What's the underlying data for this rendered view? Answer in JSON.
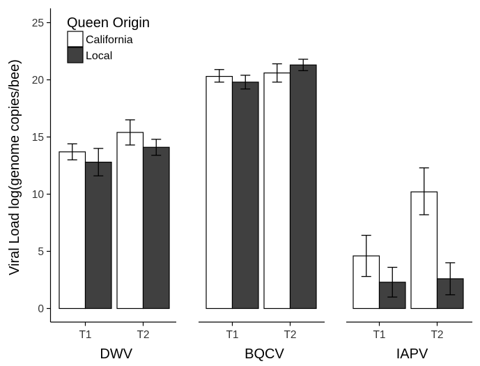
{
  "chart_data": {
    "type": "bar",
    "ylabel": "Viral Load log(genome copies/bee)",
    "ylim": [
      0,
      26
    ],
    "yticks": [
      0,
      5,
      10,
      15,
      20,
      25
    ],
    "legend": {
      "title": "Queen Origin",
      "placement": "top-left",
      "entries": [
        {
          "name": "California",
          "color": "#ffffff"
        },
        {
          "name": "Local",
          "color": "#404040"
        }
      ]
    },
    "panels": [
      {
        "name": "DWV",
        "categories": [
          "T1",
          "T2"
        ],
        "series": [
          {
            "name": "California",
            "values": [
              13.7,
              15.4
            ],
            "err_low": [
              13.0,
              14.3
            ],
            "err_high": [
              14.4,
              16.5
            ]
          },
          {
            "name": "Local",
            "values": [
              12.8,
              14.1
            ],
            "err_low": [
              11.6,
              13.4
            ],
            "err_high": [
              14.0,
              14.8
            ]
          }
        ]
      },
      {
        "name": "BQCV",
        "categories": [
          "T1",
          "T2"
        ],
        "series": [
          {
            "name": "California",
            "values": [
              20.3,
              20.6
            ],
            "err_low": [
              19.8,
              19.8
            ],
            "err_high": [
              20.9,
              21.4
            ]
          },
          {
            "name": "Local",
            "values": [
              19.8,
              21.3
            ],
            "err_low": [
              19.2,
              20.8
            ],
            "err_high": [
              20.4,
              21.8
            ]
          }
        ]
      },
      {
        "name": "IAPV",
        "categories": [
          "T1",
          "T2"
        ],
        "series": [
          {
            "name": "California",
            "values": [
              4.6,
              10.2
            ],
            "err_low": [
              2.8,
              8.2
            ],
            "err_high": [
              6.4,
              12.3
            ]
          },
          {
            "name": "Local",
            "values": [
              2.3,
              2.6
            ],
            "err_low": [
              1.0,
              1.2
            ],
            "err_high": [
              3.6,
              4.0
            ]
          }
        ]
      }
    ],
    "colors": {
      "axis": "#000000",
      "text": "#333333",
      "bar_outline": "#000000"
    }
  }
}
